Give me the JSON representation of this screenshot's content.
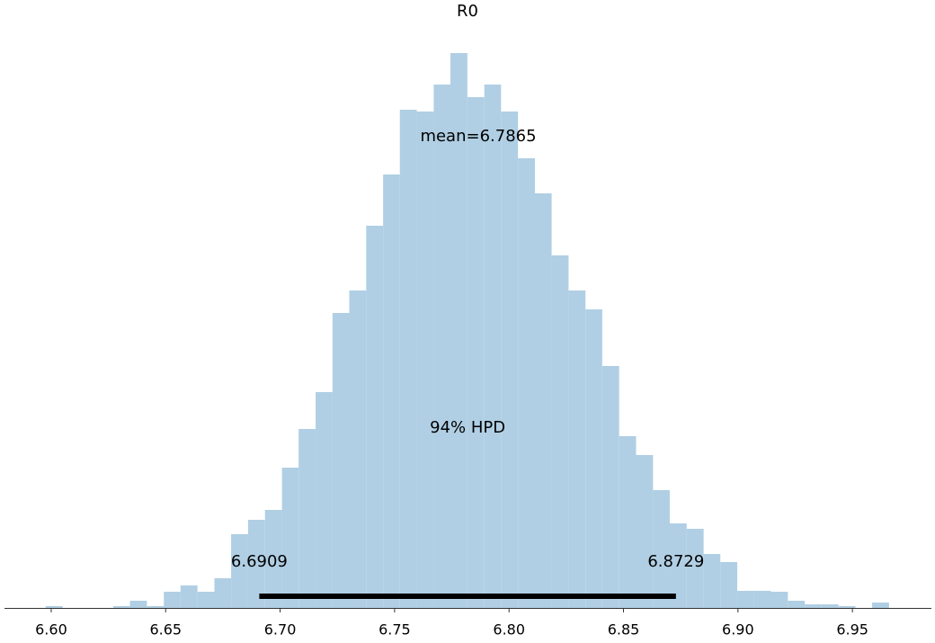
{
  "chart_data": {
    "type": "histogram",
    "title": "R0",
    "bins": [
      6.5976,
      6.605,
      6.6123,
      6.6197,
      6.6271,
      6.6344,
      6.6418,
      6.6492,
      6.6565,
      6.6639,
      6.6713,
      6.6786,
      6.686,
      6.6934,
      6.7008,
      6.7081,
      6.7155,
      6.7229,
      6.7302,
      6.7376,
      6.745,
      6.7523,
      6.7597,
      6.7671,
      6.7744,
      6.7818,
      6.7892,
      6.7965,
      6.8039,
      6.8113,
      6.8186,
      6.826,
      6.8334,
      6.8407,
      6.8481,
      6.8555,
      6.8629,
      6.8702,
      6.8776,
      6.885,
      6.8923,
      6.8997,
      6.9071,
      6.9144,
      6.9218,
      6.9292,
      6.9365,
      6.9439,
      6.9513,
      6.9586,
      6.966
    ],
    "values": [
      2,
      0,
      0,
      0,
      2,
      8,
      2,
      18,
      25,
      18,
      33,
      82,
      98,
      109,
      156,
      199,
      240,
      328,
      353,
      425,
      482,
      554,
      552,
      582,
      617,
      568,
      582,
      552,
      500,
      461,
      392,
      353,
      332,
      269,
      191,
      170,
      131,
      94,
      88,
      60,
      51,
      19,
      19,
      18,
      8,
      4,
      4,
      2,
      0,
      6
    ],
    "color": "#b0cfe4",
    "mean_label": "mean=6.7865",
    "hdi": {
      "label": "94% HPD",
      "values": [
        6.6909,
        6.8729
      ],
      "color": "#000000"
    },
    "xlim": [
      6.5796,
      6.9845
    ],
    "ylim": [
      0,
      646
    ],
    "xticks": [
      {
        "value": 6.6,
        "label": "6.60"
      },
      6.65,
      {
        "value": 6.7,
        "label": "6.70"
      },
      6.75,
      {
        "value": 6.8,
        "label": "6.80"
      },
      6.85,
      {
        "value": 6.9,
        "label": "6.90"
      },
      6.95
    ]
  }
}
